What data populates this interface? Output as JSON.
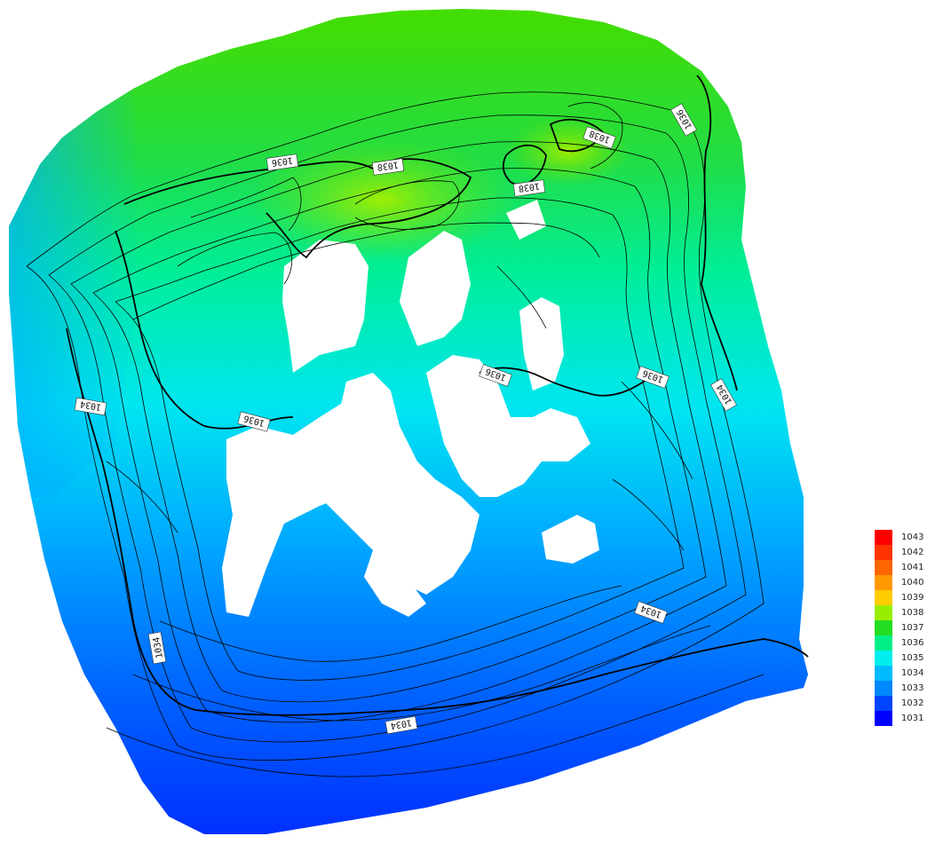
{
  "legend": {
    "items": [
      {
        "label": "1043",
        "color": "#ff0000"
      },
      {
        "label": "1042",
        "color": "#ff3300"
      },
      {
        "label": "1041",
        "color": "#ff6600"
      },
      {
        "label": "1040",
        "color": "#ff9900"
      },
      {
        "label": "1039",
        "color": "#ffcc00"
      },
      {
        "label": "1038",
        "color": "#99ee00"
      },
      {
        "label": "1037",
        "color": "#22dd22"
      },
      {
        "label": "1036",
        "color": "#00ee88"
      },
      {
        "label": "1035",
        "color": "#00eeee"
      },
      {
        "label": "1034",
        "color": "#00bbff"
      },
      {
        "label": "1033",
        "color": "#0088ff"
      },
      {
        "label": "1032",
        "color": "#0044ff"
      },
      {
        "label": "1031",
        "color": "#0000ff"
      }
    ]
  },
  "contour_labels": [
    "1036",
    "1038",
    "1038",
    "1038",
    "1036",
    "1036",
    "1036",
    "1036",
    "1034",
    "1034",
    "1034",
    "1034",
    "1034"
  ]
}
